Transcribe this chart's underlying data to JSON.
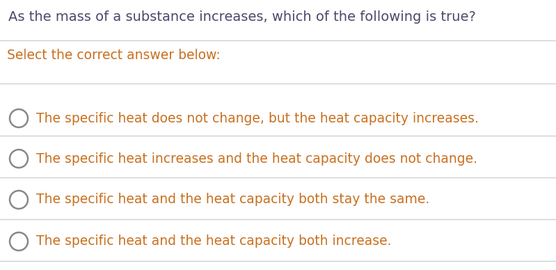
{
  "background_color": "#ffffff",
  "title": "As the mass of a substance increases, which of the following is true?",
  "title_color": "#4a4a6a",
  "title_fontsize": 14,
  "subtitle": "Select the correct answer below:",
  "subtitle_color": "#c87020",
  "subtitle_fontsize": 13.5,
  "options": [
    "The specific heat does not change, but the heat capacity increases.",
    "The specific heat increases and the heat capacity does not change.",
    "The specific heat and the heat capacity both stay the same.",
    "The specific heat and the heat capacity both increase."
  ],
  "option_color": "#c87020",
  "option_fontsize": 13.5,
  "circle_edge_color": "#888888",
  "line_color": "#d0d0d0",
  "line_width": 1.0,
  "fig_width": 7.99,
  "fig_height": 3.88,
  "dpi": 100
}
